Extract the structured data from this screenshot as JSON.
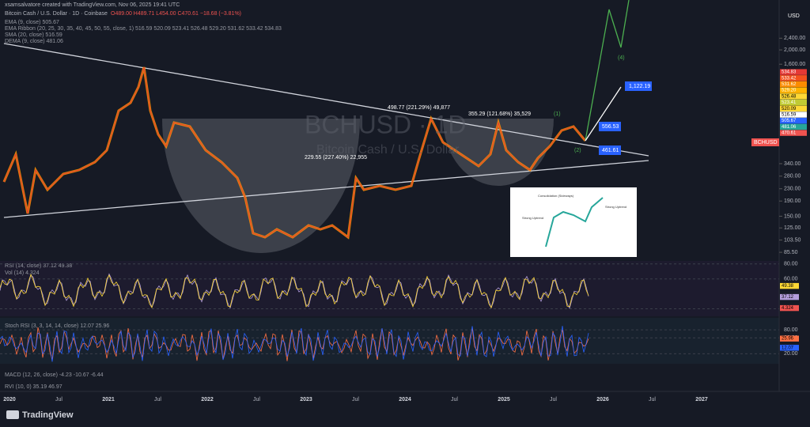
{
  "header": {
    "credit": "xsamsalvatore created with TradingView.com, Nov 06, 2025 19:41 UTC",
    "symbol": "Bitcoin Cash / U.S. Dollar · 1D · Coinbase",
    "ohlc": "O489.00 H489.71 L454.00 C470.61 −18.68 (−3.81%)"
  },
  "indicators": [
    "EMA (9, close) 505.67",
    "EMA Ribbon (20, 25, 30, 35, 40, 45, 50, 55, close, 1) 516.59 520.09 523.41 526.48 529.20 531.62 533.42 534.83",
    "SMA (20, close) 516.59",
    "DEMA (9, close) 481.06"
  ],
  "chart_data": {
    "type": "candlestick",
    "currency": "USD",
    "log_scale": true,
    "ylim": [
      76.6,
      4350
    ],
    "yticks": [
      {
        "value": 2400,
        "label": "2,400.00"
      },
      {
        "value": 2000,
        "label": "2,000.00"
      },
      {
        "value": 1600,
        "label": "1,600.00"
      },
      {
        "value": 340,
        "label": "340.00"
      },
      {
        "value": 280,
        "label": "280.00"
      },
      {
        "value": 230,
        "label": "230.00"
      },
      {
        "value": 190,
        "label": "190.00"
      },
      {
        "value": 150,
        "label": "150.00"
      },
      {
        "value": 125,
        "label": "125.00"
      },
      {
        "value": 103.5,
        "label": "103.50"
      },
      {
        "value": 85.5,
        "label": "85.50"
      }
    ],
    "categories": [
      "2020",
      "Jul",
      "2021",
      "Jul",
      "2022",
      "Jul",
      "2023",
      "Jul",
      "2024",
      "Jul",
      "2025",
      "Jul",
      "2026",
      "Jul",
      "2027"
    ],
    "watermark": [
      "BCHUSD · 1D",
      "Bitcoin Cash / U.S. Dollar"
    ],
    "symbol_tag": "BCHUSD",
    "price_labels": [
      {
        "text": "534.83",
        "color": "#e53935"
      },
      {
        "text": "533.42",
        "color": "#f4511e"
      },
      {
        "text": "531.62",
        "color": "#fb8c00"
      },
      {
        "text": "529.20",
        "color": "#ffb300"
      },
      {
        "text": "526.48",
        "color": "#fdd835"
      },
      {
        "text": "523.41",
        "color": "#c0ca33"
      },
      {
        "text": "520.09",
        "color": "#fdd835"
      },
      {
        "text": "516.59",
        "color": "#ffffff"
      },
      {
        "text": "505.67",
        "color": "#2962ff"
      },
      {
        "text": "481.06",
        "color": "#26a69a"
      },
      {
        "text": "470.61",
        "color": "#ef5350"
      }
    ],
    "annotations": [
      {
        "text": "498.77 (221.29%) 49,877"
      },
      {
        "text": "355.29 (121.68%) 35,529"
      },
      {
        "text": "229.55 (227.40%) 22,955"
      },
      {
        "text": "(1)"
      },
      {
        "text": "(2)"
      },
      {
        "text": "(4)"
      },
      {
        "text": "1,122.19"
      },
      {
        "text": "556.53"
      },
      {
        "text": "461.61"
      }
    ],
    "inset": [
      "Consolidation (Sideways)",
      "Strong Uptrend",
      "Strong Uptrend"
    ]
  },
  "rsi": {
    "label": "RSI (14, close) 37.12 49.38",
    "vol": "Vol (14) 4.324",
    "ylim": [
      10,
      84
    ],
    "yticks": [
      {
        "value": 80,
        "label": "80.00"
      },
      {
        "value": 60,
        "label": "60.00"
      },
      {
        "value": 20,
        "label": "20.00"
      }
    ],
    "labels": [
      "49.38",
      "37.12",
      "4.324"
    ]
  },
  "stoch": {
    "label": "Stoch RSI (3, 3, 14, 14, close) 12.07 25.96",
    "ylim": [
      -5,
      110
    ],
    "yticks": [
      {
        "value": 80,
        "label": "80.00"
      },
      {
        "value": 60,
        "label": "60.00"
      },
      {
        "value": 20,
        "label": "20.00"
      }
    ],
    "labels": [
      "25.96",
      "12.07"
    ]
  },
  "macd": "MACD (12, 26, close) -4.23 -10.67 -6.44",
  "rvi": "RVI (10, 0) 35.19 46.97",
  "footer": "TradingView"
}
